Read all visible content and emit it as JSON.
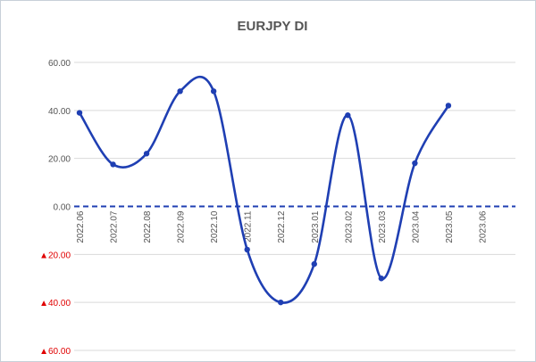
{
  "chart_data": {
    "type": "line",
    "title": "EURJPY DI",
    "categories": [
      "2022.06",
      "2022.07",
      "2022.08",
      "2022.09",
      "2022.10",
      "2022.11",
      "2022.12",
      "2023.01",
      "2023.02",
      "2023.03",
      "2023.04",
      "2023.05",
      "2023.06"
    ],
    "series": [
      {
        "values": [
          39,
          17.5,
          22,
          48,
          48,
          -18,
          -40,
          -24,
          38,
          -30,
          18,
          42,
          null
        ]
      }
    ],
    "ylim": [
      -60,
      60
    ],
    "yticks": [
      60,
      40,
      20,
      0,
      -20,
      -40,
      -60
    ],
    "ytick_labels": [
      "60.00",
      "40.00",
      "20.00",
      "0.00",
      "▲20.00",
      "▲40.00",
      "▲60.00"
    ],
    "grid": "horizontal",
    "smooth": true,
    "reference_line": {
      "y": 0,
      "style": "dashed"
    },
    "colors": {
      "line": "#1f3fb3",
      "reference_line": "#1f3fb3",
      "grid": "#d9d9d9",
      "negative_label": "#e00000",
      "positive_label": "#555555"
    }
  }
}
